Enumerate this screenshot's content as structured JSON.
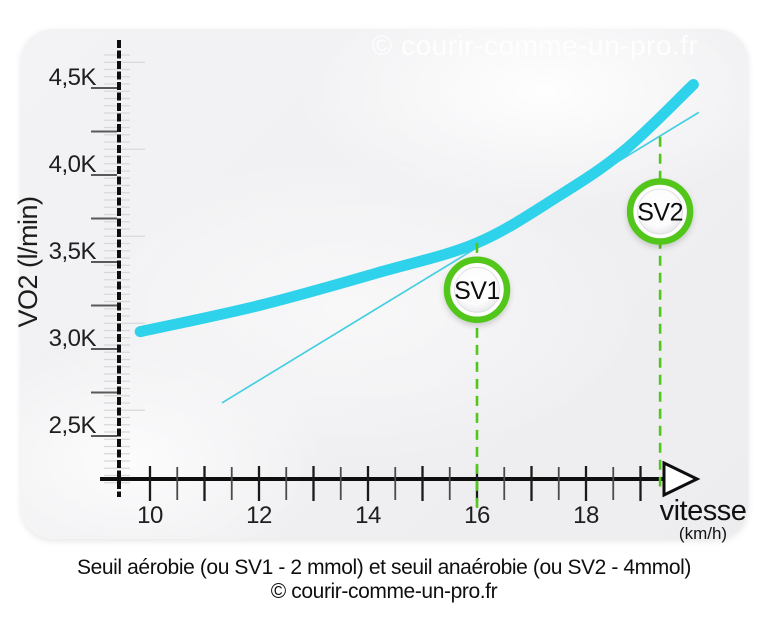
{
  "watermark": "© courir-comme-un-pro.fr",
  "caption": {
    "line1": "Seuil aérobie (ou SV1 - 2 mmol) et seuil anaérobie (ou SV2 - 4mmol)",
    "line2": "© courir-comme-un-pro.fr"
  },
  "chart_data": {
    "type": "line",
    "xlabel": "vitesse",
    "xlabel_unit": "(km/h)",
    "ylabel": "VO2 (l/min)",
    "x_tick_labels": [
      10,
      12,
      14,
      16,
      18
    ],
    "x_minor_tick_start": 10,
    "x_minor_tick_end": 19,
    "x_minor_tick_step": 0.5,
    "xlim": [
      9.05,
      20.1
    ],
    "y_tick_labels": [
      "4,5K",
      "4,0K",
      "3,5K",
      "3,0K",
      "2,5K"
    ],
    "y_tick_values": [
      4.5,
      4.0,
      3.5,
      3.0,
      2.5
    ],
    "y_quarter_tick_step": 0.25,
    "ylim": [
      2.26,
      4.78
    ],
    "grid": false,
    "legend": false,
    "series": [
      {
        "name": "vo2-curve",
        "x": [
          9.82,
          12.0,
          14.2,
          16.0,
          17.5,
          18.7,
          19.97
        ],
        "y": [
          3.1,
          3.25,
          3.44,
          3.61,
          3.88,
          4.14,
          4.52
        ],
        "color": "#2ed2ea",
        "width": 11
      },
      {
        "name": "tangent-line",
        "x": [
          11.32,
          20.07
        ],
        "y": [
          2.69,
          4.36
        ],
        "color": "#45cfe2",
        "width": 1.7
      }
    ],
    "markers": [
      {
        "label": "SV1",
        "x": 16.0,
        "dash_top_y": 3.61,
        "dash_bottom_y": 2.06,
        "badge_y": 3.34
      },
      {
        "label": "SV2",
        "x": 19.36,
        "dash_top_y": 4.22,
        "dash_bottom_y": 2.21,
        "badge_y": 3.79
      }
    ],
    "colors": {
      "curve_cyan": "#2ed2ea",
      "threshold_green": "#52c61b",
      "axis_black": "#0e0e0e",
      "ruler_light": "#d8d8da",
      "ruler_dark": "#59595b"
    }
  }
}
